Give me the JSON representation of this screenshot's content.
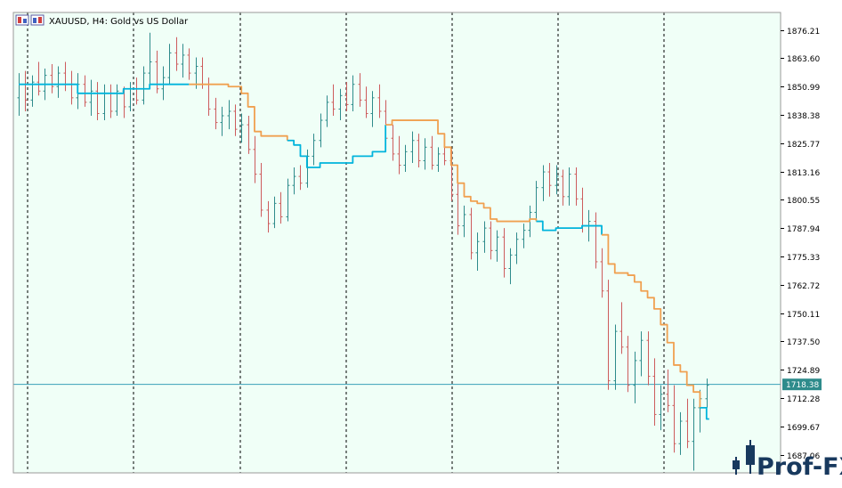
{
  "window": {
    "title": "XAUUSD, H4:  Gold vs US Dollar",
    "icon": "chart-window-icon"
  },
  "watermark": {
    "text": "Prof-FX"
  },
  "colors": {
    "background": "#f0fff7",
    "frame": "#9a9a9a",
    "candle_bull": "#2e8b8b",
    "candle_bear": "#cd5c5c",
    "trail_up": "#00b4dc",
    "trail_down": "#f0a050",
    "price_line": "#3aa0b8",
    "separator": "#000000",
    "axis_text": "#000000",
    "price_tag_bg": "#2e8b8b",
    "price_tag_text": "#ffffff",
    "watermark": "#18395e"
  },
  "chart_data": {
    "type": "candlestick",
    "symbol": "XAUUSD",
    "timeframe": "H4",
    "ylim": [
      1679,
      1884
    ],
    "y_ticks": [
      1876.21,
      1863.6,
      1850.99,
      1838.38,
      1825.77,
      1813.16,
      1800.55,
      1787.94,
      1775.33,
      1762.72,
      1750.11,
      1737.5,
      1724.89,
      1712.28,
      1699.67,
      1687.06
    ],
    "current_price": 1718.38,
    "current_price_label": "1718.38",
    "day_separators": 7,
    "candles": [
      [
        1846,
        1857,
        1838,
        1852
      ],
      [
        1852,
        1858,
        1840,
        1845
      ],
      [
        1845,
        1856,
        1842,
        1853
      ],
      [
        1853,
        1862,
        1847,
        1849
      ],
      [
        1849,
        1859,
        1845,
        1856
      ],
      [
        1856,
        1861,
        1848,
        1851
      ],
      [
        1851,
        1860,
        1846,
        1857
      ],
      [
        1857,
        1862,
        1849,
        1852
      ],
      [
        1852,
        1858,
        1843,
        1846
      ],
      [
        1846,
        1857,
        1841,
        1852
      ],
      [
        1852,
        1856,
        1842,
        1844
      ],
      [
        1844,
        1854,
        1838,
        1849
      ],
      [
        1849,
        1853,
        1836,
        1839
      ],
      [
        1839,
        1852,
        1836,
        1848
      ],
      [
        1848,
        1852,
        1837,
        1840
      ],
      [
        1840,
        1852,
        1838,
        1849
      ],
      [
        1849,
        1851,
        1837,
        1842
      ],
      [
        1842,
        1853,
        1840,
        1850
      ],
      [
        1850,
        1855,
        1843,
        1845
      ],
      [
        1845,
        1860,
        1843,
        1857
      ],
      [
        1857,
        1875,
        1852,
        1862
      ],
      [
        1862,
        1867,
        1848,
        1850
      ],
      [
        1850,
        1860,
        1845,
        1855
      ],
      [
        1855,
        1870,
        1852,
        1866
      ],
      [
        1866,
        1873,
        1858,
        1861
      ],
      [
        1861,
        1870,
        1855,
        1865
      ],
      [
        1865,
        1868,
        1854,
        1857
      ],
      [
        1857,
        1864,
        1850,
        1860
      ],
      [
        1860,
        1864,
        1850,
        1852
      ],
      [
        1852,
        1855,
        1838,
        1841
      ],
      [
        1841,
        1846,
        1832,
        1835
      ],
      [
        1835,
        1842,
        1829,
        1838
      ],
      [
        1838,
        1845,
        1832,
        1840
      ],
      [
        1840,
        1843,
        1829,
        1832
      ],
      [
        1832,
        1839,
        1826,
        1834
      ],
      [
        1834,
        1838,
        1821,
        1823
      ],
      [
        1823,
        1829,
        1808,
        1812
      ],
      [
        1812,
        1817,
        1793,
        1796
      ],
      [
        1796,
        1800,
        1786,
        1790
      ],
      [
        1790,
        1802,
        1788,
        1799
      ],
      [
        1799,
        1804,
        1790,
        1793
      ],
      [
        1793,
        1810,
        1791,
        1807
      ],
      [
        1807,
        1815,
        1803,
        1811
      ],
      [
        1811,
        1816,
        1805,
        1808
      ],
      [
        1808,
        1823,
        1806,
        1820
      ],
      [
        1820,
        1830,
        1816,
        1827
      ],
      [
        1827,
        1839,
        1824,
        1836
      ],
      [
        1836,
        1847,
        1833,
        1844
      ],
      [
        1844,
        1852,
        1838,
        1841
      ],
      [
        1841,
        1850,
        1836,
        1847
      ],
      [
        1847,
        1853,
        1840,
        1843
      ],
      [
        1843,
        1856,
        1840,
        1852
      ],
      [
        1852,
        1857,
        1842,
        1845
      ],
      [
        1845,
        1851,
        1837,
        1839
      ],
      [
        1839,
        1849,
        1833,
        1846
      ],
      [
        1846,
        1852,
        1837,
        1840
      ],
      [
        1840,
        1845,
        1825,
        1828
      ],
      [
        1828,
        1834,
        1818,
        1821
      ],
      [
        1821,
        1829,
        1812,
        1816
      ],
      [
        1816,
        1825,
        1813,
        1822
      ],
      [
        1822,
        1831,
        1817,
        1827
      ],
      [
        1827,
        1830,
        1815,
        1818
      ],
      [
        1818,
        1828,
        1814,
        1824
      ],
      [
        1824,
        1829,
        1814,
        1816
      ],
      [
        1816,
        1824,
        1813,
        1821
      ],
      [
        1821,
        1828,
        1816,
        1818
      ],
      [
        1818,
        1823,
        1800,
        1803
      ],
      [
        1803,
        1808,
        1785,
        1789
      ],
      [
        1789,
        1798,
        1784,
        1794
      ],
      [
        1794,
        1797,
        1774,
        1777
      ],
      [
        1777,
        1786,
        1769,
        1782
      ],
      [
        1782,
        1791,
        1777,
        1788
      ],
      [
        1788,
        1791,
        1774,
        1778
      ],
      [
        1778,
        1787,
        1773,
        1784
      ],
      [
        1784,
        1788,
        1766,
        1770
      ],
      [
        1770,
        1779,
        1763,
        1776
      ],
      [
        1776,
        1786,
        1772,
        1783
      ],
      [
        1783,
        1790,
        1779,
        1787
      ],
      [
        1787,
        1798,
        1784,
        1795
      ],
      [
        1795,
        1809,
        1792,
        1806
      ],
      [
        1806,
        1816,
        1800,
        1813
      ],
      [
        1813,
        1817,
        1802,
        1807
      ],
      [
        1807,
        1816,
        1803,
        1811
      ],
      [
        1811,
        1814,
        1798,
        1802
      ],
      [
        1802,
        1815,
        1798,
        1812
      ],
      [
        1812,
        1815,
        1798,
        1801
      ],
      [
        1801,
        1806,
        1786,
        1789
      ],
      [
        1789,
        1796,
        1782,
        1791
      ],
      [
        1791,
        1795,
        1770,
        1773
      ],
      [
        1773,
        1779,
        1757,
        1760
      ],
      [
        1760,
        1765,
        1716,
        1720
      ],
      [
        1720,
        1745,
        1716,
        1742
      ],
      [
        1742,
        1755,
        1732,
        1735
      ],
      [
        1735,
        1740,
        1715,
        1718
      ],
      [
        1718,
        1733,
        1710,
        1729
      ],
      [
        1729,
        1742,
        1722,
        1738
      ],
      [
        1738,
        1742,
        1718,
        1722
      ],
      [
        1722,
        1730,
        1700,
        1705
      ],
      [
        1705,
        1718,
        1698,
        1714
      ],
      [
        1714,
        1725,
        1706,
        1709
      ],
      [
        1709,
        1718,
        1688,
        1692
      ],
      [
        1692,
        1706,
        1687,
        1702
      ],
      [
        1702,
        1712,
        1690,
        1693
      ],
      [
        1693,
        1712,
        1680,
        1708
      ],
      [
        1708,
        1716,
        1697,
        1712
      ],
      [
        1712,
        1721,
        1708,
        1718
      ]
    ],
    "trail_line": [
      1852,
      1852,
      1852,
      1852,
      1852,
      1852,
      1852,
      1852,
      1852,
      1848,
      1848,
      1848,
      1848,
      1848,
      1848,
      1848,
      1850,
      1850,
      1850,
      1850,
      1852,
      1852,
      1852,
      1852,
      1852,
      1852,
      1852,
      1852,
      1852,
      1852,
      1852,
      1852,
      1851,
      1851,
      1848,
      1842,
      1831,
      1829,
      1829,
      1829,
      1829,
      1827,
      1825,
      1820,
      1815,
      1815,
      1817,
      1817,
      1817,
      1817,
      1817,
      1820,
      1820,
      1820,
      1822,
      1822,
      1834,
      1836,
      1836,
      1836,
      1836,
      1836,
      1836,
      1836,
      1830,
      1824,
      1816,
      1808,
      1802,
      1800,
      1799,
      1797,
      1792,
      1791,
      1791,
      1791,
      1791,
      1791,
      1792,
      1791,
      1787,
      1787,
      1788,
      1788,
      1788,
      1788,
      1789,
      1789,
      1789,
      1785,
      1772,
      1768,
      1768,
      1767,
      1764,
      1760,
      1757,
      1752,
      1745,
      1737,
      1727,
      1724,
      1718,
      1715,
      1708,
      1703
    ],
    "trail_segments": [
      {
        "state": "up",
        "from": 0,
        "to": 26
      },
      {
        "state": "down",
        "from": 26,
        "to": 41
      },
      {
        "state": "up",
        "from": 41,
        "to": 56
      },
      {
        "state": "down",
        "from": 56,
        "to": 79
      },
      {
        "state": "up",
        "from": 79,
        "to": 89
      },
      {
        "state": "down",
        "from": 89,
        "to": 104
      },
      {
        "state": "up",
        "from": 104,
        "to": 105
      }
    ]
  }
}
